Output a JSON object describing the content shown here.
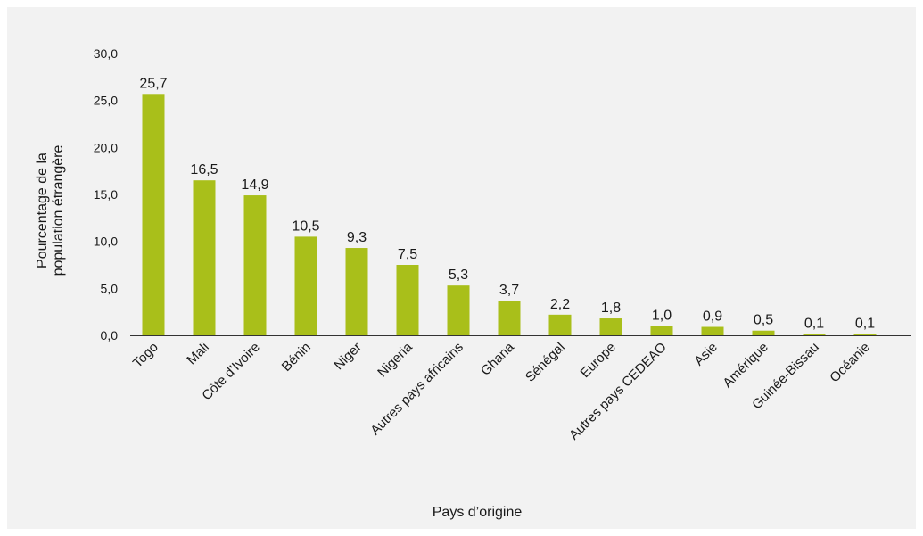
{
  "chart_data": {
    "type": "bar",
    "xlabel": "Pays d’origine",
    "ylabel_lines": [
      "Pourcentage de la",
      "population étrangère"
    ],
    "ylim": [
      0,
      30
    ],
    "yticks": [
      "0,0",
      "5,0",
      "10,0",
      "15,0",
      "20,0",
      "25,0",
      "30,0"
    ],
    "ytick_values": [
      0,
      5,
      10,
      15,
      20,
      25,
      30
    ],
    "grid": false,
    "categories": [
      "Togo",
      "Mali",
      "Côte d’Ivoire",
      "Bénin",
      "Niger",
      "Nigeria",
      "Autres pays africains",
      "Ghana",
      "Sénégal",
      "Europe",
      "Autres pays CEDEAO",
      "Asie",
      "Amérique",
      "Guinée-Bissau",
      "Océanie"
    ],
    "values": [
      25.7,
      16.5,
      14.9,
      10.5,
      9.3,
      7.5,
      5.3,
      3.7,
      2.2,
      1.8,
      1.0,
      0.9,
      0.5,
      0.1,
      0.1
    ],
    "value_labels": [
      "25,7",
      "16,5",
      "14,9",
      "10,5",
      "9,3",
      "7,5",
      "5,3",
      "3,7",
      "2,2",
      "1,8",
      "1,0",
      "0,9",
      "0,5",
      "0,1",
      "0,1"
    ],
    "bar_color": "#a9bf1a"
  }
}
